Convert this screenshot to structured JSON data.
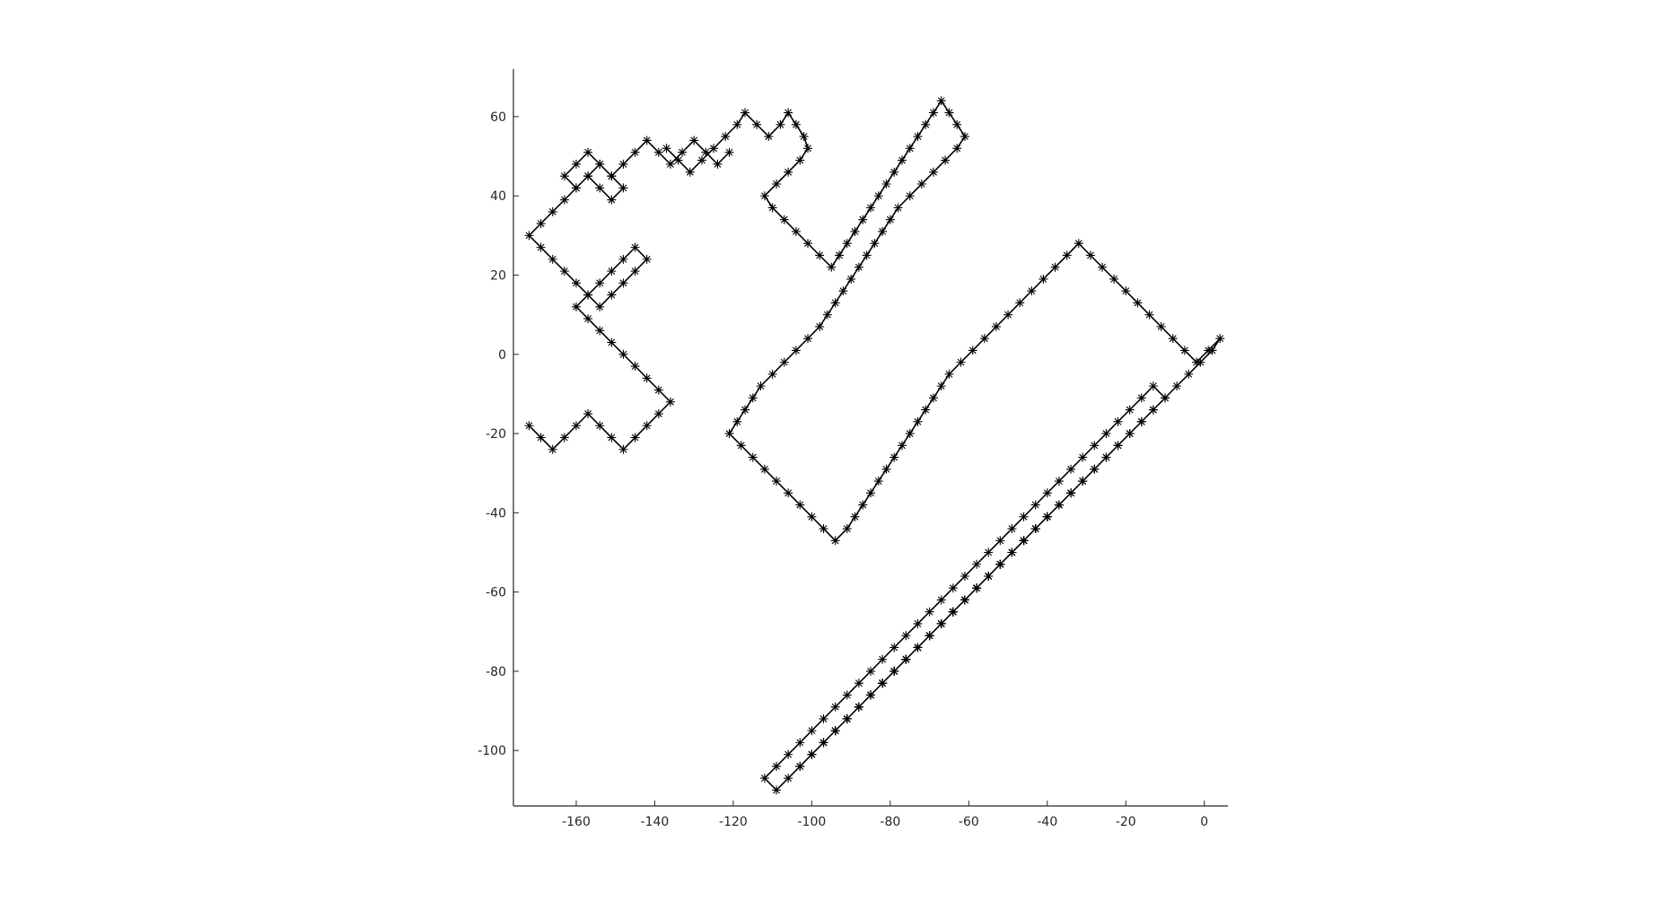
{
  "chart_data": {
    "type": "line",
    "title": "",
    "xlabel": "",
    "ylabel": "",
    "xlim": [
      -176,
      6
    ],
    "ylim": [
      -114,
      72
    ],
    "xticks": [
      -160,
      -140,
      -120,
      -100,
      -80,
      -60,
      -40,
      -20,
      0
    ],
    "yticks": [
      -100,
      -80,
      -60,
      -40,
      -20,
      0,
      20,
      40,
      60
    ],
    "xtick_labels": [
      "-160",
      "-140",
      "-120",
      "-100",
      "-80",
      "-60",
      "-40",
      "-20",
      "0"
    ],
    "ytick_labels": [
      "-100",
      "-80",
      "-60",
      "-40",
      "-20",
      "0",
      "20",
      "40",
      "60"
    ],
    "grid": false,
    "legend": "none",
    "marker": "asterisk",
    "line_color": "#000000",
    "description_of_series": "2D lattice random walk with diagonal steps, dense cluster near (-45,-50)",
    "series": [
      {
        "x": [
          -137,
          -134,
          -131,
          -128,
          -125,
          -122,
          -119,
          -117,
          -114,
          -111,
          -108,
          -106,
          -104,
          -102,
          -101,
          -103,
          -106,
          -109,
          -112,
          -110,
          -107,
          -104,
          -101,
          -98,
          -95,
          -93,
          -91,
          -89,
          -87,
          -85,
          -83,
          -81,
          -79,
          -77,
          -75,
          -73,
          -71,
          -69,
          -67,
          -65,
          -63,
          -61,
          -63,
          -66,
          -69,
          -72,
          -75,
          -78,
          -80,
          -82,
          -84,
          -86,
          -88,
          -90,
          -92,
          -94,
          -96,
          -98,
          -101,
          -104,
          -107,
          -110,
          -113,
          -115,
          -117,
          -119,
          -121,
          -118,
          -115,
          -112,
          -109,
          -106,
          -103,
          -100,
          -97,
          -94,
          -91,
          -89,
          -87,
          -85,
          -83,
          -81,
          -79,
          -77,
          -75,
          -73,
          -71,
          -69,
          -67,
          -65,
          -62,
          -59,
          -56,
          -53,
          -50,
          -47,
          -44,
          -41,
          -38,
          -35,
          -32,
          -29,
          -26,
          -23,
          -20,
          -17,
          -14,
          -11,
          -8,
          -5,
          -2,
          1,
          4,
          2,
          -1,
          -4,
          -7,
          -10,
          -13,
          -16,
          -19,
          -22,
          -25,
          -28,
          -31,
          -34,
          -37,
          -40,
          -43,
          -46,
          -49,
          -52,
          -55,
          -58,
          -61,
          -64,
          -67,
          -70,
          -73,
          -76,
          -79,
          -82,
          -85,
          -88,
          -91,
          -94,
          -97,
          -100,
          -103,
          -106,
          -109,
          -112,
          -109,
          -106,
          -103,
          -100,
          -97,
          -94,
          -91,
          -88,
          -85,
          -82,
          -79,
          -76,
          -73,
          -70,
          -67,
          -64,
          -61,
          -58,
          -55,
          -52,
          -49,
          -46,
          -43,
          -40,
          -37,
          -34,
          -31,
          -28,
          -25,
          -22,
          -19,
          -16,
          -13,
          -10,
          -13,
          -16,
          -19,
          -22,
          -25,
          -28,
          -31,
          -34,
          -37,
          -40,
          -43,
          -46,
          -49,
          -52,
          -55,
          -58,
          -61,
          -64,
          -67,
          -70,
          -73,
          -76,
          -79,
          -82,
          -85,
          -88,
          -91,
          -94,
          -97,
          -100,
          -103,
          -100,
          -97,
          -94,
          -91,
          -88,
          -85,
          -82,
          -79,
          -76,
          -73,
          -70,
          -67,
          -64,
          -61,
          -58,
          -55,
          -52,
          -49,
          -46,
          -43,
          -40,
          -37,
          -34,
          -31,
          -34,
          -37,
          -40,
          -43,
          -46,
          -49,
          -52,
          -55,
          -58,
          -61,
          -64,
          -67,
          -70,
          -73,
          -76,
          -79,
          -82,
          -85,
          -88,
          -91,
          -94,
          -97,
          -94,
          -91,
          -88,
          -85,
          -82,
          -79,
          -76,
          -73,
          -70,
          -67,
          -64,
          -61,
          -58,
          -55,
          -52,
          -49,
          -46
        ],
        "y": [
          52,
          49,
          46,
          49,
          52,
          55,
          58,
          61,
          58,
          55,
          58,
          61,
          58,
          55,
          52,
          49,
          46,
          43,
          40,
          37,
          34,
          31,
          28,
          25,
          22,
          25,
          28,
          31,
          34,
          37,
          40,
          43,
          46,
          49,
          52,
          55,
          58,
          61,
          64,
          61,
          58,
          55,
          52,
          49,
          46,
          43,
          40,
          37,
          34,
          31,
          28,
          25,
          22,
          19,
          16,
          13,
          10,
          7,
          4,
          1,
          -2,
          -5,
          -8,
          -11,
          -14,
          -17,
          -20,
          -23,
          -26,
          -29,
          -32,
          -35,
          -38,
          -41,
          -44,
          -47,
          -44,
          -41,
          -38,
          -35,
          -32,
          -29,
          -26,
          -23,
          -20,
          -17,
          -14,
          -11,
          -8,
          -5,
          -2,
          1,
          4,
          7,
          10,
          13,
          16,
          19,
          22,
          25,
          28,
          25,
          22,
          19,
          16,
          13,
          10,
          7,
          4,
          1,
          -2,
          1,
          4,
          1,
          -2,
          -5,
          -8,
          -11,
          -14,
          -17,
          -20,
          -23,
          -26,
          -29,
          -32,
          -35,
          -38,
          -41,
          -44,
          -47,
          -50,
          -53,
          -56,
          -59,
          -62,
          -65,
          -68,
          -71,
          -74,
          -77,
          -80,
          -83,
          -86,
          -89,
          -92,
          -95,
          -98,
          -101,
          -104,
          -107,
          -110,
          -107,
          -104,
          -101,
          -98,
          -95,
          -92,
          -89,
          -86,
          -83,
          -80,
          -77,
          -74,
          -71,
          -68,
          -65,
          -62,
          -59,
          -56,
          -53,
          -50,
          -47,
          -44,
          -41,
          -38,
          -35,
          -32,
          -29,
          -26,
          -23,
          -20,
          -17,
          -14,
          -11,
          -8,
          -11,
          -14,
          -17,
          -20,
          -23,
          -26,
          -29,
          -32,
          -35,
          -38,
          -41,
          -44,
          -47,
          -50,
          -53,
          -56,
          -59,
          -62,
          -65,
          -68,
          -71,
          -74,
          -77,
          -80,
          -83,
          -86,
          -89,
          -92,
          -95,
          -98,
          -101,
          -104,
          -101,
          -98,
          -95,
          -92,
          -89,
          -86,
          -83,
          -80,
          -77,
          -74,
          -71,
          -68,
          -65,
          -62,
          -59,
          -56,
          -53,
          -50,
          -47,
          -44,
          -41,
          -38,
          -35,
          -32,
          -35,
          -38,
          -41,
          -44,
          -47,
          -50,
          -53,
          -56,
          -59,
          -62,
          -65,
          -68,
          -71,
          -74,
          -77,
          -80,
          -83,
          -86,
          -89,
          -92,
          -95,
          -98,
          -95,
          -92,
          -89,
          -86,
          -83,
          -80,
          -77,
          -74,
          -71,
          -68,
          -65,
          -62,
          -59,
          -56,
          -53,
          -50,
          -47
        ]
      },
      {
        "x": [
          -172,
          -169,
          -166,
          -163,
          -160,
          -157,
          -154,
          -151,
          -148,
          -145,
          -142,
          -139,
          -136,
          -139,
          -142,
          -145,
          -148,
          -151,
          -154,
          -157,
          -160,
          -157,
          -154,
          -151,
          -148,
          -145,
          -142,
          -145,
          -148,
          -151,
          -154,
          -157,
          -160,
          -163,
          -166,
          -169,
          -172,
          -169,
          -166,
          -163,
          -160,
          -157,
          -154,
          -151,
          -148,
          -151,
          -154,
          -157,
          -160,
          -163,
          -160,
          -157,
          -154,
          -151,
          -148,
          -145,
          -142,
          -139,
          -136,
          -133,
          -130,
          -127,
          -124,
          -121
        ],
        "y": [
          -18,
          -21,
          -24,
          -21,
          -18,
          -15,
          -18,
          -21,
          -24,
          -21,
          -18,
          -15,
          -12,
          -9,
          -6,
          -3,
          0,
          3,
          6,
          9,
          12,
          15,
          18,
          21,
          24,
          27,
          24,
          21,
          18,
          15,
          12,
          15,
          18,
          21,
          24,
          27,
          30,
          33,
          36,
          39,
          42,
          45,
          42,
          39,
          42,
          45,
          48,
          45,
          42,
          45,
          48,
          51,
          48,
          45,
          48,
          51,
          54,
          51,
          48,
          51,
          54,
          51,
          48,
          51
        ]
      }
    ]
  }
}
